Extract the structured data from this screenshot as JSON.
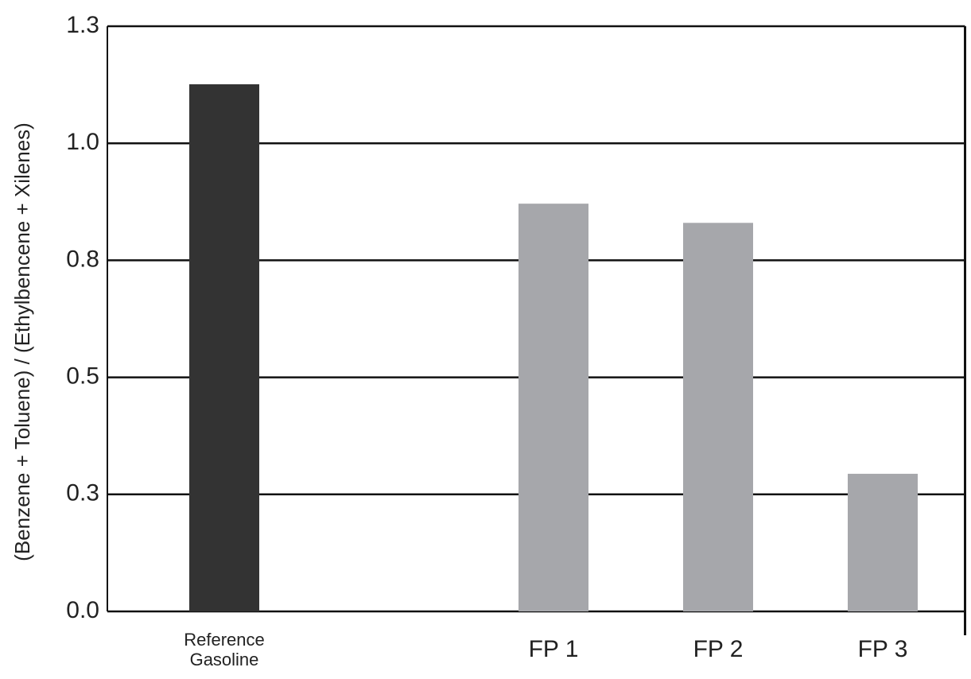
{
  "chart_data": {
    "type": "bar",
    "y_label": "(Benzene + Toluene) / (Ethylbencene + Xilenes)",
    "categories": [
      "Reference Gasoline",
      null,
      "FP 1",
      "FP 2",
      "FP 3"
    ],
    "values": [
      1.126,
      null,
      0.871,
      0.83,
      0.294
    ],
    "colors": [
      "#333333",
      null,
      "#a6a7ab",
      "#a6a7ab",
      "#a6a7ab"
    ],
    "ylim": [
      0,
      1.25
    ],
    "yticks": [
      {
        "value": 0,
        "label": "0.0"
      },
      {
        "value": 0.25,
        "label": "0.3"
      },
      0.5,
      {
        "value": 0.75,
        "label": "0.8"
      },
      {
        "value": 1.0,
        "label": "1.0"
      },
      {
        "value": 1.25,
        "label": "1.3"
      }
    ],
    "grid": true
  }
}
